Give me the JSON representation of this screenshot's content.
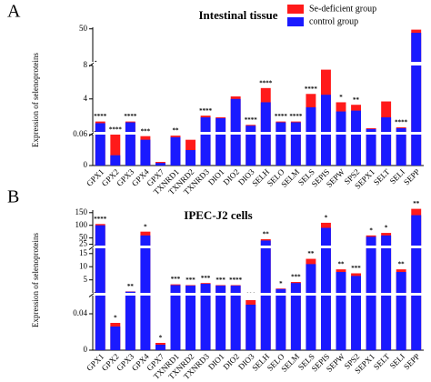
{
  "chart_data": [
    {
      "type": "bar",
      "overlap": true,
      "panel": "A",
      "title": "Intestinal tissue",
      "y_label": "Expression of selenoproteins",
      "categories": [
        "GPX1",
        "GPX2",
        "GPX3",
        "GPX4",
        "GPX7",
        "TXNRD1",
        "TXNRD2",
        "TXNRD3",
        "DIO1",
        "DIO2",
        "DIO3",
        "SELH",
        "SELO",
        "SELM",
        "SELS",
        "SEPIS",
        "SEPW",
        "SPS2",
        "SEPX1",
        "SELT",
        "SELI",
        "SEPP"
      ],
      "series": [
        {
          "name": "Se-deficient group",
          "color": "#ff1a1a",
          "values": [
            1.3,
            0.06,
            1.3,
            0.057,
            0.007,
            0.058,
            0.05,
            2.0,
            1.8,
            4.3,
            0.9,
            5.3,
            1.3,
            1.3,
            4.6,
            7.5,
            3.6,
            3.3,
            0.5,
            3.7,
            0.6,
            49
          ]
        },
        {
          "name": "control group",
          "color": "#1a1aff",
          "values": [
            1.1,
            0.02,
            1.2,
            0.05,
            0.005,
            0.055,
            0.03,
            1.8,
            1.7,
            4.0,
            0.8,
            3.6,
            1.2,
            1.2,
            3.0,
            4.5,
            2.5,
            2.6,
            0.4,
            1.8,
            0.5,
            45
          ]
        }
      ],
      "annotations": [
        "****",
        "****",
        "****",
        "***",
        null,
        "**",
        null,
        "****",
        null,
        null,
        "****",
        "****",
        "****",
        "****",
        "****",
        "**",
        "*",
        "**",
        null,
        null,
        "****",
        null
      ],
      "y_segments": [
        {
          "ylim": [
            0,
            0.06
          ],
          "yticks": [
            0,
            0.06
          ]
        },
        {
          "ylim": [
            0.06,
            8
          ],
          "yticks": [
            4,
            8
          ]
        },
        {
          "ylim": [
            8,
            52
          ],
          "yticks": [
            50
          ]
        }
      ]
    },
    {
      "type": "bar",
      "overlap": true,
      "panel": "B",
      "title": "IPEC-J2 cells",
      "y_label": "Expression of selenoproteins",
      "categories": [
        "GPX1",
        "GPX2",
        "GPX3",
        "GPX4",
        "GPX7",
        "TXNRD1",
        "TXNRD2",
        "TXNRD3",
        "DIO1",
        "DIO2",
        "DIO3",
        "SELH",
        "SELO",
        "SELM",
        "SELS",
        "SEPIS",
        "SEPW",
        "SPS2",
        "SEPX1",
        "SELT",
        "SELI",
        "SEPP"
      ],
      "series": [
        {
          "color": "#ff1a1a",
          "values": [
            105,
            0.03,
            0.6,
            75,
            0.008,
            3.3,
            3,
            3.8,
            3,
            3,
            0.055,
            45,
            1.7,
            4.2,
            13,
            110,
            9,
            7.5,
            60,
            70,
            9,
            165
          ]
        },
        {
          "color": "#1a1aff",
          "values": [
            100,
            0.026,
            0.5,
            60,
            0.006,
            3,
            2.8,
            3.5,
            2.8,
            2.8,
            0.05,
            40,
            1.5,
            3.8,
            11,
            90,
            8,
            6.5,
            55,
            60,
            8,
            140
          ]
        }
      ],
      "annotations": [
        "****",
        "*",
        "**",
        "*",
        "*",
        "***",
        "***",
        "***",
        "***",
        "****",
        "***",
        "**",
        "*",
        "***",
        "**",
        "*",
        "**",
        "***",
        "*",
        "*",
        "**",
        "**"
      ],
      "y_segments": [
        {
          "ylim": [
            0,
            0.06
          ],
          "yticks": [
            0,
            0.04
          ]
        },
        {
          "ylim": [
            0.06,
            17
          ],
          "yticks": [
            5,
            10,
            15
          ]
        },
        {
          "ylim": [
            20,
            160
          ],
          "yticks": [
            25,
            50,
            100,
            150
          ]
        }
      ]
    }
  ]
}
